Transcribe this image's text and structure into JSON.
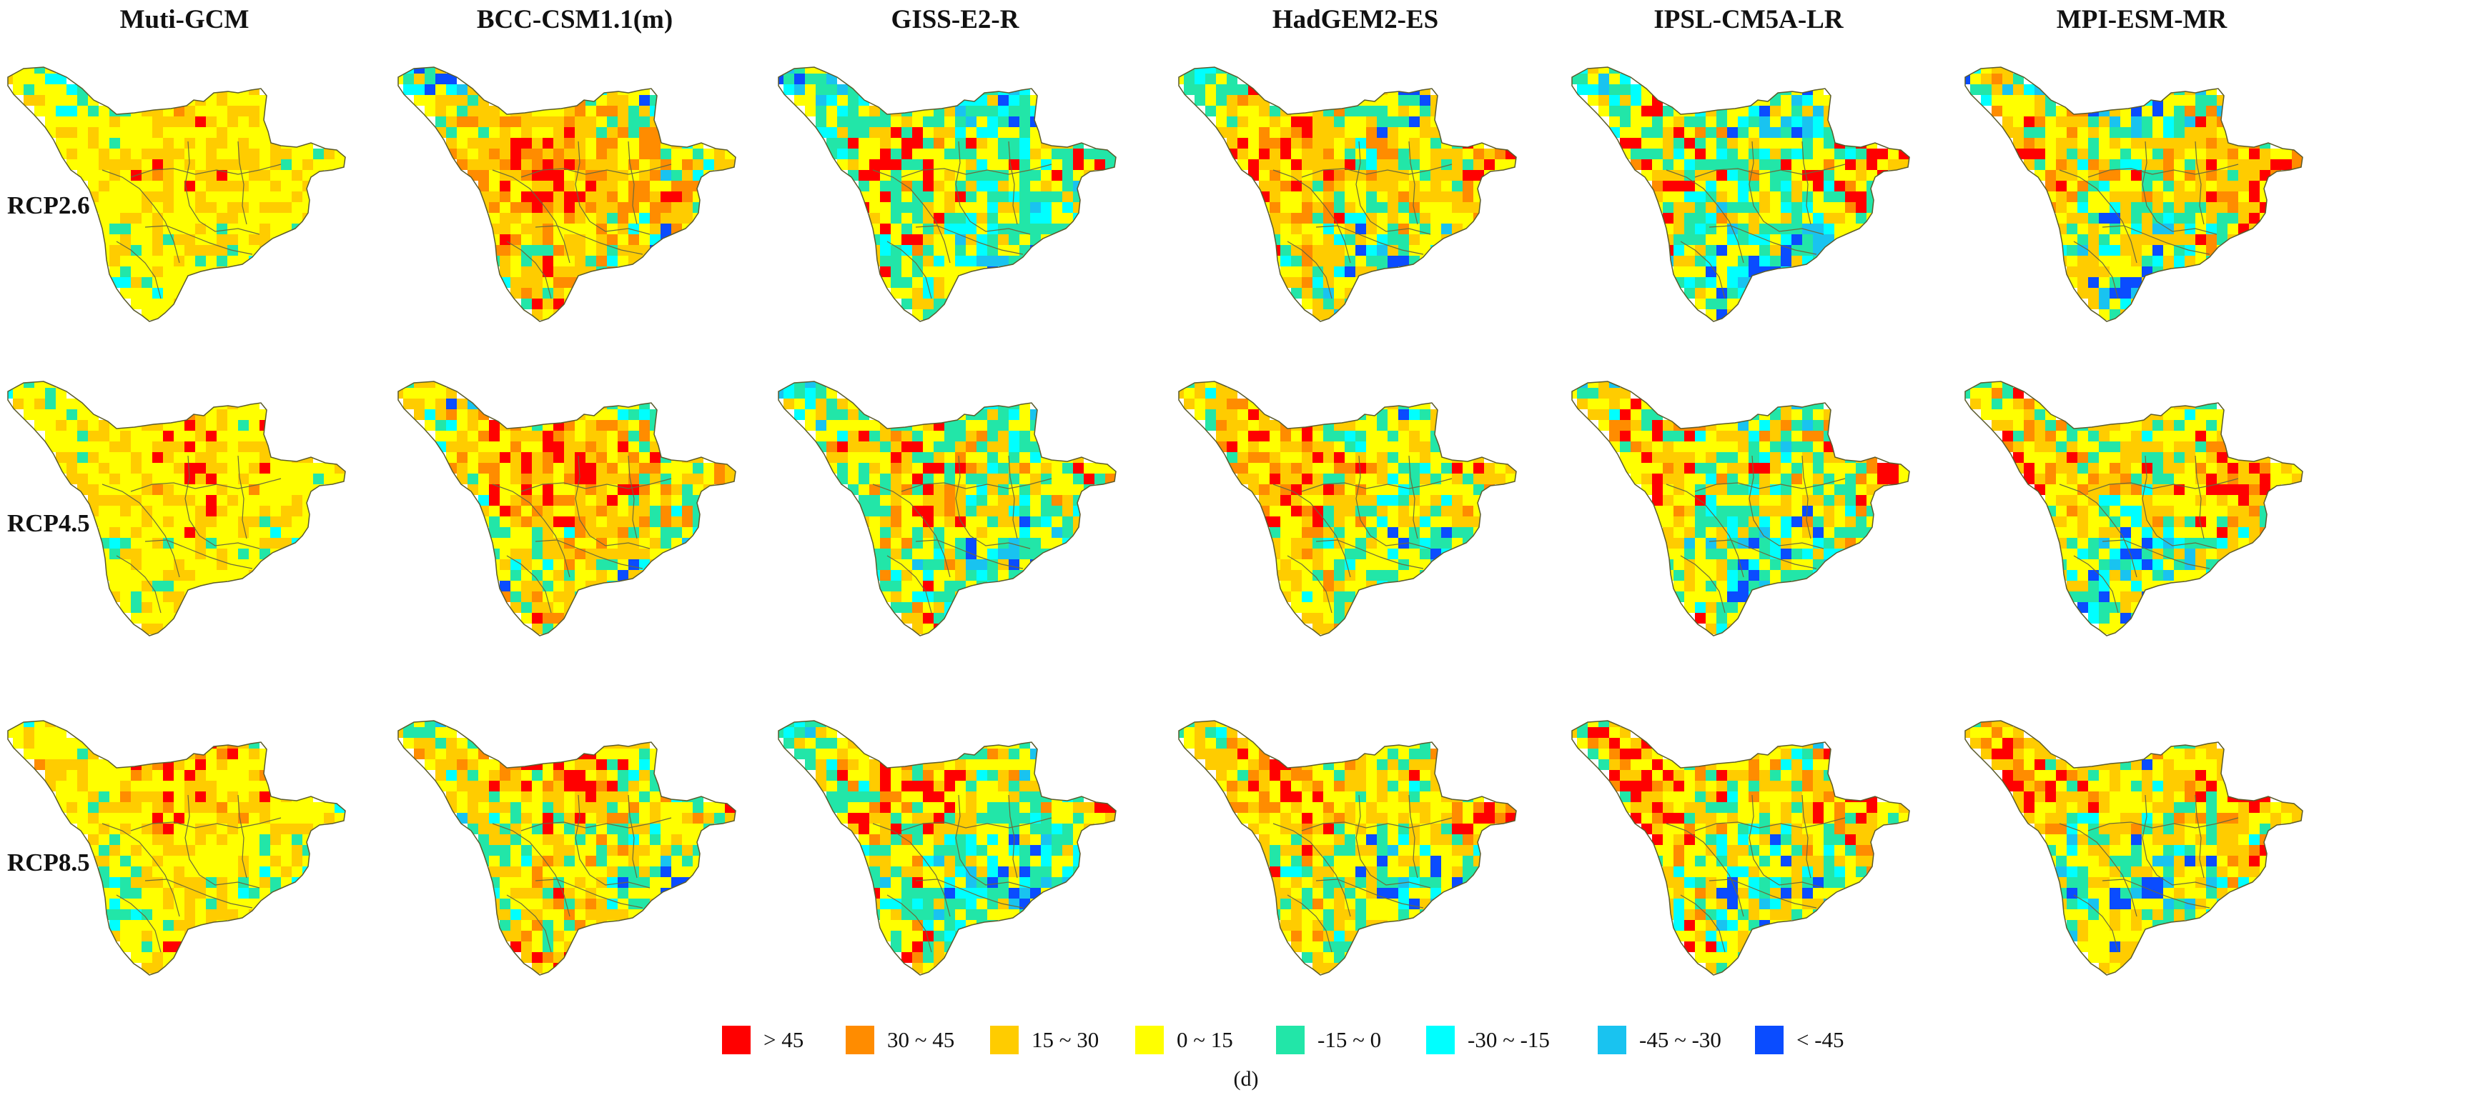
{
  "columns": [
    "Muti-GCM",
    "BCC-CSM1.1(m)",
    "GISS-E2-R",
    "HadGEM2-ES",
    "IPSL-CM5A-LR",
    "MPI-ESM-MR"
  ],
  "rows": [
    "RCP2.6",
    "RCP4.5",
    "RCP8.5"
  ],
  "legend": [
    {
      "label": "> 45",
      "color": "#ff0000"
    },
    {
      "label": "30 ~ 45",
      "color": "#ff8c00"
    },
    {
      "label": "15 ~ 30",
      "color": "#ffcc00"
    },
    {
      "label": "0 ~ 15",
      "color": "#ffff00"
    },
    {
      "label": "-15 ~ 0",
      "color": "#22e6a8"
    },
    {
      "label": "-30 ~ -15",
      "color": "#00ffff"
    },
    {
      "label": "-45 ~ -30",
      "color": "#19c3f0"
    },
    {
      "label": "< -45",
      "color": "#0a4cff"
    }
  ],
  "caption": "(d)",
  "map_class_mix": {
    "Muti-GCM": {
      "RCP2.6": [
        0.01,
        0.02,
        0.3,
        0.52,
        0.13,
        0.02,
        0.0,
        0.0
      ],
      "RCP4.5": [
        0.01,
        0.02,
        0.32,
        0.5,
        0.13,
        0.02,
        0.0,
        0.0
      ],
      "RCP8.5": [
        0.03,
        0.05,
        0.3,
        0.45,
        0.14,
        0.03,
        0.0,
        0.0
      ]
    },
    "BCC-CSM1.1(m)": {
      "RCP2.6": [
        0.1,
        0.18,
        0.3,
        0.2,
        0.12,
        0.06,
        0.03,
        0.01
      ],
      "RCP4.5": [
        0.08,
        0.16,
        0.3,
        0.22,
        0.13,
        0.07,
        0.03,
        0.01
      ],
      "RCP8.5": [
        0.06,
        0.1,
        0.28,
        0.24,
        0.18,
        0.1,
        0.03,
        0.01
      ]
    },
    "GISS-E2-R": {
      "RCP2.6": [
        0.05,
        0.05,
        0.16,
        0.24,
        0.27,
        0.13,
        0.07,
        0.03
      ],
      "RCP4.5": [
        0.07,
        0.07,
        0.18,
        0.22,
        0.24,
        0.13,
        0.06,
        0.03
      ],
      "RCP8.5": [
        0.08,
        0.07,
        0.17,
        0.22,
        0.24,
        0.12,
        0.06,
        0.04
      ]
    },
    "HadGEM2-ES": {
      "RCP2.6": [
        0.07,
        0.12,
        0.28,
        0.24,
        0.17,
        0.08,
        0.03,
        0.01
      ],
      "RCP4.5": [
        0.05,
        0.1,
        0.28,
        0.28,
        0.18,
        0.08,
        0.02,
        0.01
      ],
      "RCP8.5": [
        0.06,
        0.1,
        0.27,
        0.27,
        0.18,
        0.09,
        0.02,
        0.01
      ]
    },
    "IPSL-CM5A-LR": {
      "RCP2.6": [
        0.07,
        0.07,
        0.15,
        0.22,
        0.24,
        0.12,
        0.08,
        0.05
      ],
      "RCP4.5": [
        0.08,
        0.08,
        0.17,
        0.25,
        0.22,
        0.1,
        0.06,
        0.04
      ],
      "RCP8.5": [
        0.12,
        0.1,
        0.22,
        0.24,
        0.18,
        0.07,
        0.04,
        0.03
      ]
    },
    "MPI-ESM-MR": {
      "RCP2.6": [
        0.08,
        0.13,
        0.27,
        0.2,
        0.13,
        0.08,
        0.06,
        0.05
      ],
      "RCP4.5": [
        0.06,
        0.11,
        0.28,
        0.24,
        0.15,
        0.08,
        0.05,
        0.03
      ],
      "RCP8.5": [
        0.07,
        0.11,
        0.29,
        0.24,
        0.15,
        0.07,
        0.04,
        0.03
      ]
    }
  }
}
